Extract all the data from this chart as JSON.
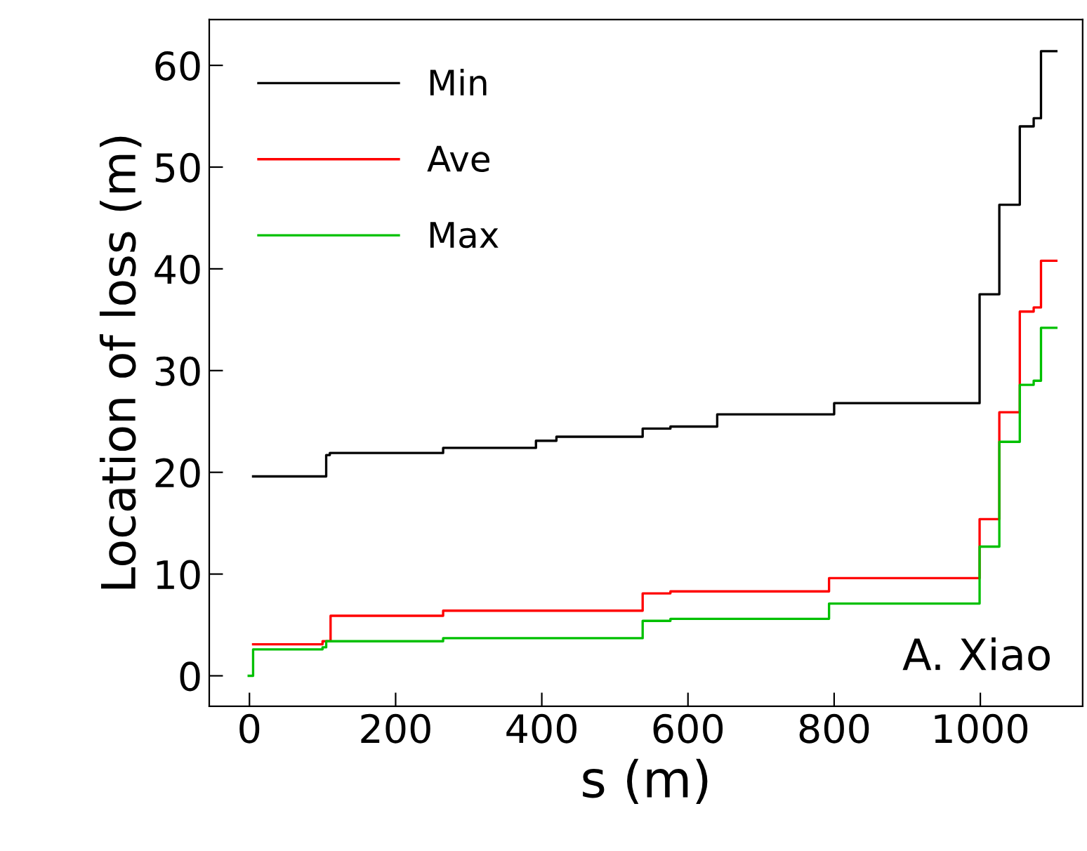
{
  "chart_data": {
    "type": "step",
    "xlabel": "s (m)",
    "ylabel": "Location of loss (m)",
    "xlim": [
      -55,
      1140
    ],
    "xticks": [
      0,
      200,
      400,
      600,
      800,
      1000
    ],
    "ylim": [
      -3,
      64.5
    ],
    "yticks": [
      0,
      10,
      20,
      30,
      40,
      50,
      60
    ],
    "grid": false,
    "legend": "top left",
    "annotations": [
      "A. Xiao"
    ],
    "series": [
      {
        "name": "Min",
        "color": "#000000",
        "x": [
          5,
          105,
          110,
          265,
          392,
          420,
          538,
          576,
          640,
          800,
          999,
          1026,
          1054,
          1073,
          1083,
          1104
        ],
        "values": [
          19.6,
          21.7,
          21.9,
          22.4,
          23.1,
          23.5,
          24.3,
          24.5,
          25.7,
          26.8,
          37.5,
          46.3,
          54.0,
          54.8,
          61.4,
          61.4
        ]
      },
      {
        "name": "Ave",
        "color": "#ff0000",
        "x": [
          5,
          100,
          111,
          265,
          538,
          576,
          793,
          999,
          1026,
          1054,
          1073,
          1083,
          1104
        ],
        "values": [
          3.1,
          3.4,
          5.9,
          6.4,
          8.1,
          8.3,
          9.6,
          15.4,
          25.9,
          35.8,
          36.2,
          40.8,
          40.8
        ]
      },
      {
        "name": "Max",
        "color": "#00c000",
        "x": [
          -1,
          5,
          100,
          105,
          265,
          538,
          576,
          793,
          999,
          1026,
          1054,
          1073,
          1083,
          1104
        ],
        "values": [
          0,
          2.6,
          2.8,
          3.4,
          3.7,
          5.4,
          5.6,
          7.1,
          12.7,
          23.0,
          28.6,
          29.0,
          34.2,
          34.2
        ]
      }
    ]
  }
}
